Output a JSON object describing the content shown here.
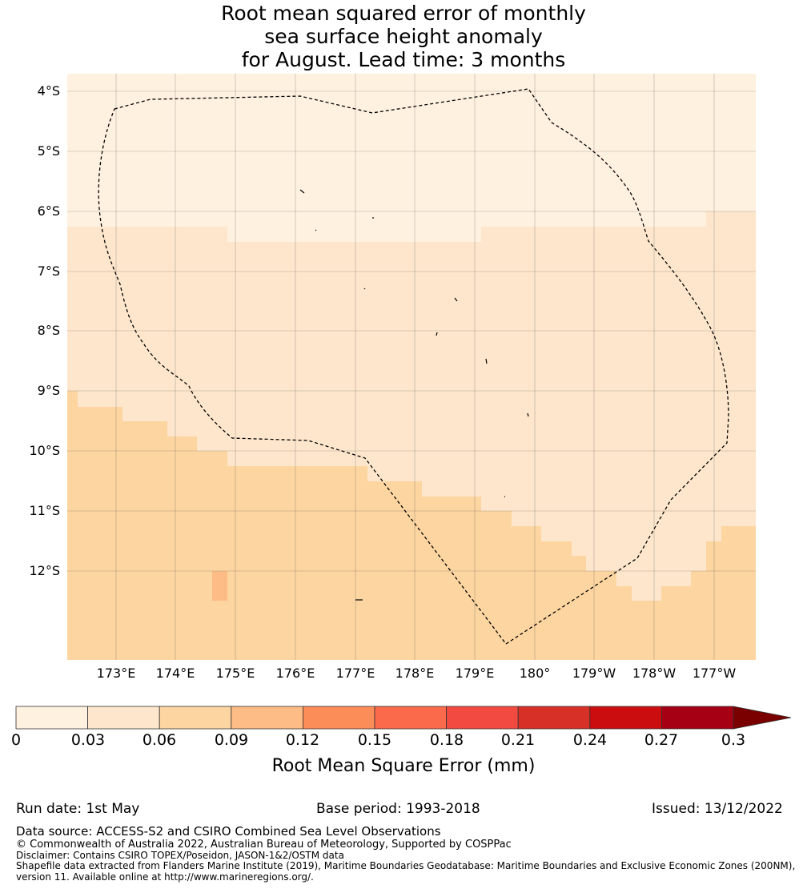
{
  "title": {
    "line1": "Root mean squared error of monthly",
    "line2": "sea surface height anomaly",
    "line3": "for August. Lead time: 3 months"
  },
  "map": {
    "lat_labels": [
      "4°S",
      "5°S",
      "6°S",
      "7°S",
      "8°S",
      "9°S",
      "10°S",
      "11°S",
      "12°S"
    ],
    "lon_labels": [
      "173°E",
      "174°E",
      "175°E",
      "176°E",
      "177°E",
      "178°E",
      "179°E",
      "180°",
      "179°W",
      "178°W",
      "177°W"
    ],
    "extent": {
      "lon": [
        172.2,
        183.7
      ],
      "lat": [
        -13.5,
        -3.7
      ]
    },
    "boundary_style": "dashed black (EEZ)"
  },
  "colorbar": {
    "ticks": [
      "0",
      "0.03",
      "0.06",
      "0.09",
      "0.12",
      "0.15",
      "0.18",
      "0.21",
      "0.24",
      "0.27",
      "0.3"
    ],
    "colors": [
      "#fff1e0",
      "#fee6cc",
      "#fdd5a0",
      "#fdbb85",
      "#fc8d59",
      "#fb6a4a",
      "#f24a40",
      "#d73027",
      "#cc0d10",
      "#a50014"
    ],
    "extend_color": "#7a0000",
    "label": "Root Mean Square Error (mm)"
  },
  "footer": {
    "run_date": "Run date: 1st May",
    "base_period": "Base period: 1993-2018",
    "issued": "Issued: 13/12/2022",
    "data_source": "Data source: ACCESS-S2 and CSIRO Combined Sea Level Observations",
    "copyright": "© Commonwealth of Australia 2022, Australian Bureau of Meteorology, Supported by COSPPac",
    "disclaimer": "Disclaimer: Contains CSIRO TOPEX/Poseidon, JASON-1&2/OSTM data",
    "shapefile1": "Shapefile data extracted from Flanders Marine Institute (2019), Maritime Boundaries Geodatabase: Maritime Boundaries and Exclusive Economic Zones (200NM),",
    "shapefile2": "version 11. Available online at http://www.marineregions.org/."
  }
}
